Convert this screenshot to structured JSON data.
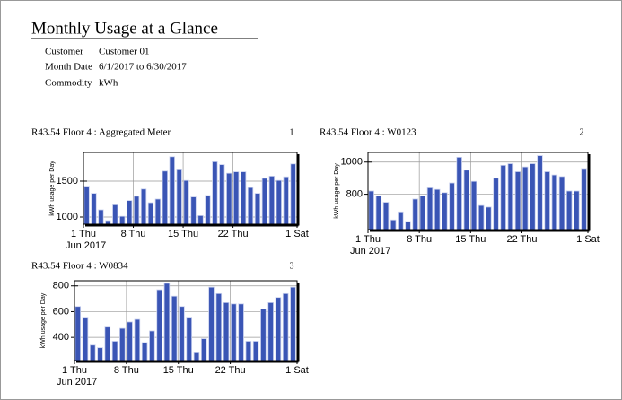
{
  "header": {
    "title": "Monthly Usage at a Glance",
    "fields": [
      [
        "Customer",
        "Customer 01"
      ],
      [
        "Month Date",
        "6/1/2017 to 6/30/2017"
      ],
      [
        "Commodity",
        "kWh"
      ]
    ]
  },
  "chart_data": [
    {
      "type": "bar",
      "title": "R43.54 Floor 4 : Aggregated Meter",
      "panel": "1",
      "y_label": "kWh usage per Day",
      "x_sublabel": "Jun 2017",
      "x": [
        1,
        2,
        3,
        4,
        5,
        6,
        7,
        8,
        9,
        10,
        11,
        12,
        13,
        14,
        15,
        16,
        17,
        18,
        19,
        20,
        21,
        22,
        23,
        24,
        25,
        26,
        27,
        28,
        29,
        30
      ],
      "values": [
        1430,
        1330,
        1100,
        950,
        1170,
        1010,
        1230,
        1290,
        1390,
        1200,
        1250,
        1640,
        1840,
        1670,
        1510,
        1280,
        1020,
        1300,
        1770,
        1730,
        1610,
        1630,
        1630,
        1410,
        1330,
        1540,
        1570,
        1510,
        1560,
        1740
      ],
      "color": "#3a55b5",
      "xlim": [
        1,
        31
      ],
      "ylim": [
        900,
        1900
      ],
      "yticks": [
        1000,
        1500
      ],
      "xticks": [
        {
          "value": 1,
          "label": "1 Thu"
        },
        {
          "value": 8,
          "label": "8 Thu"
        },
        {
          "value": 15,
          "label": "15 Thu"
        },
        {
          "value": 22,
          "label": "22 Thu"
        },
        {
          "value": 31,
          "label": "1 Sat"
        }
      ],
      "grid": true
    },
    {
      "type": "bar",
      "title": "R43.54 Floor 4 : W0123",
      "panel": "2",
      "y_label": "kWh usage per Day",
      "x_sublabel": "Jun 2017",
      "x": [
        1,
        2,
        3,
        4,
        5,
        6,
        7,
        8,
        9,
        10,
        11,
        12,
        13,
        14,
        15,
        16,
        17,
        18,
        19,
        20,
        21,
        22,
        23,
        24,
        25,
        26,
        27,
        28,
        29,
        30
      ],
      "values": [
        820,
        790,
        750,
        640,
        690,
        630,
        770,
        790,
        840,
        830,
        810,
        870,
        1030,
        950,
        880,
        730,
        720,
        900,
        980,
        990,
        940,
        970,
        990,
        1040,
        940,
        920,
        910,
        820,
        820,
        960
      ],
      "color": "#3a55b5",
      "xlim": [
        1,
        31
      ],
      "ylim": [
        580,
        1060
      ],
      "yticks": [
        800,
        1000
      ],
      "xticks": [
        {
          "value": 1,
          "label": "1 Thu"
        },
        {
          "value": 8,
          "label": "8 Thu"
        },
        {
          "value": 15,
          "label": "15 Thu"
        },
        {
          "value": 22,
          "label": "22 Thu"
        },
        {
          "value": 31,
          "label": "1 Sat"
        }
      ],
      "grid": true
    },
    {
      "type": "bar",
      "title": "R43.54 Floor 4 : W0834",
      "panel": "3",
      "y_label": "kWh usage per Day",
      "x_sublabel": "Jun 2017",
      "x": [
        1,
        2,
        3,
        4,
        5,
        6,
        7,
        8,
        9,
        10,
        11,
        12,
        13,
        14,
        15,
        16,
        17,
        18,
        19,
        20,
        21,
        22,
        23,
        24,
        25,
        26,
        27,
        28,
        29,
        30
      ],
      "values": [
        640,
        550,
        340,
        320,
        480,
        370,
        470,
        520,
        540,
        360,
        450,
        770,
        820,
        720,
        640,
        550,
        280,
        390,
        790,
        740,
        670,
        660,
        660,
        370,
        370,
        620,
        670,
        710,
        740,
        790
      ],
      "color": "#3a55b5",
      "xlim": [
        1,
        31
      ],
      "ylim": [
        220,
        840
      ],
      "yticks": [
        400,
        600,
        800
      ],
      "xticks": [
        {
          "value": 1,
          "label": "1 Thu"
        },
        {
          "value": 8,
          "label": "8 Thu"
        },
        {
          "value": 15,
          "label": "15 Thu"
        },
        {
          "value": 22,
          "label": "22 Thu"
        },
        {
          "value": 31,
          "label": "1 Sat"
        }
      ],
      "grid": true
    }
  ]
}
